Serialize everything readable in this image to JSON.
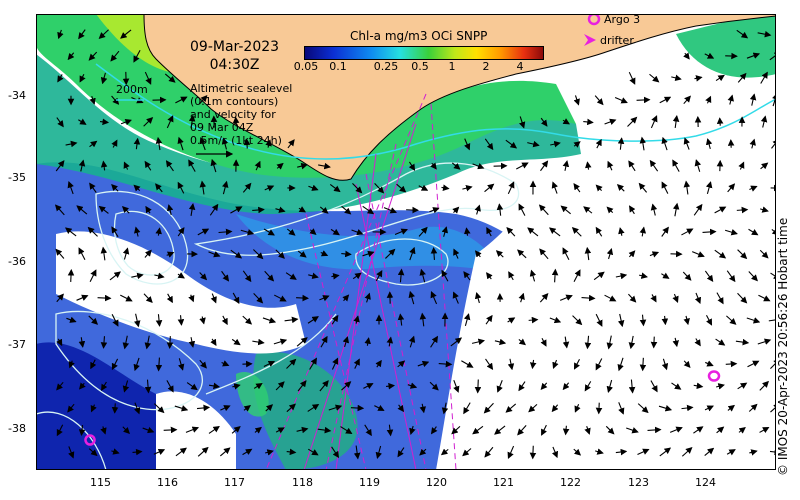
{
  "map": {
    "date": "09-Mar-2023",
    "time": "04:30Z",
    "info_text": "Altimetric sealevel\n(0.1m contours)\nand velocity for\n09 Mar 04Z\n0.5m/s (1kt 24h)",
    "depth_label": "200m",
    "legend_title": "Chl-a mg/m3 OCi SNPP",
    "colorbar_ticks": [
      "0.05",
      "0.1",
      "0.25",
      "0.5",
      "1",
      "2",
      "4"
    ],
    "argo_label": "Argo 3",
    "drifter_label": "drifter",
    "credit": "© IMOS 20-Apr-2023 20:56:26 Hobart time",
    "lon_ticks": [
      "115",
      "116",
      "117",
      "118",
      "119",
      "120",
      "121",
      "122",
      "123",
      "124"
    ],
    "lat_ticks": [
      "-34",
      "-35",
      "-36",
      "-37",
      "-38"
    ],
    "colors": {
      "land": "#f8c996",
      "contour": "#d8f4f4",
      "isobath": "#33dbe8",
      "track": "#d020d0",
      "argo": "#e820e0"
    }
  }
}
